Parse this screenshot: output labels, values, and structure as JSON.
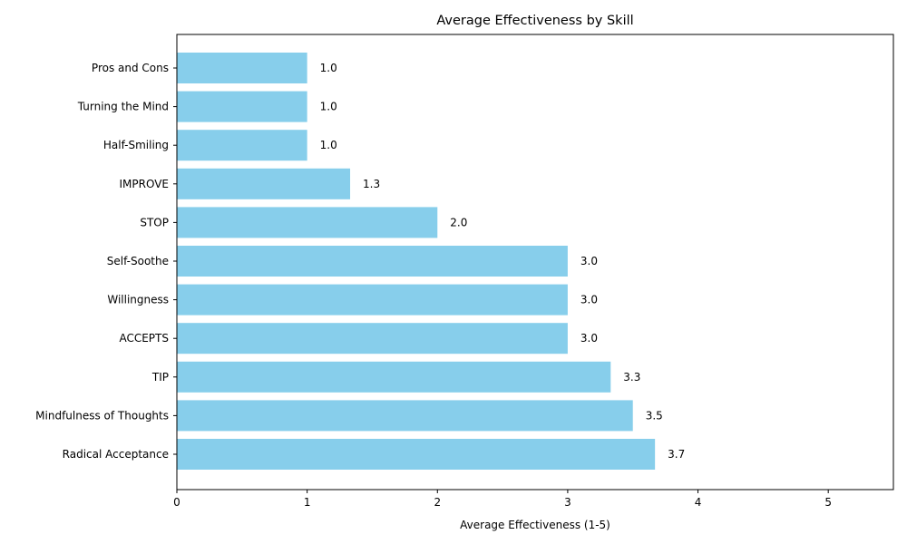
{
  "chart_data": {
    "type": "bar",
    "orientation": "horizontal",
    "title": "Average Effectiveness by Skill",
    "xlabel": "Average Effectiveness (1-5)",
    "ylabel": "",
    "xlim": [
      0,
      5.5
    ],
    "xticks": [
      0,
      1,
      2,
      3,
      4,
      5
    ],
    "grid": false,
    "bar_color": "#87CEEB",
    "categories": [
      "Radical Acceptance",
      "Mindfulness of Thoughts",
      "TIP",
      "ACCEPTS",
      "Willingness",
      "Self-Soothe",
      "STOP",
      "IMPROVE",
      "Half-Smiling",
      "Turning the Mind",
      "Pros and Cons"
    ],
    "values": [
      3.67,
      3.5,
      3.33,
      3.0,
      3.0,
      3.0,
      2.0,
      1.33,
      1.0,
      1.0,
      1.0
    ],
    "value_labels": [
      "3.7",
      "3.5",
      "3.3",
      "3.0",
      "3.0",
      "3.0",
      "2.0",
      "1.3",
      "1.0",
      "1.0",
      "1.0"
    ]
  }
}
